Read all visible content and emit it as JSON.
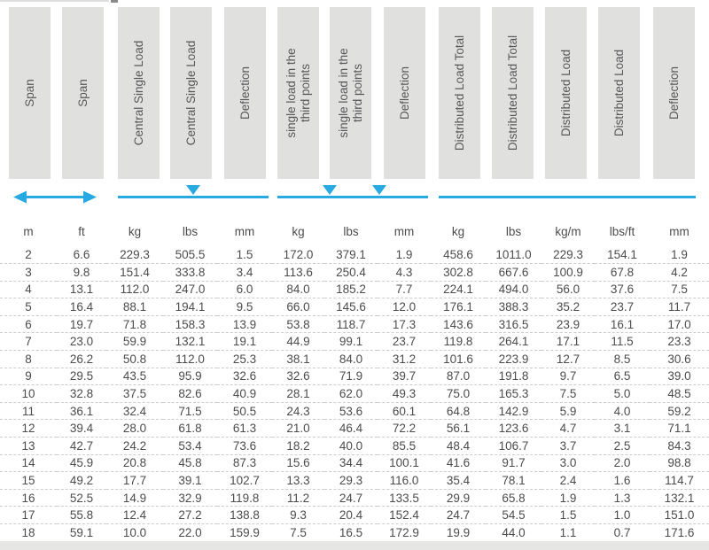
{
  "colors": {
    "accent_blue": "#29a9e2",
    "header_box_bg": "#e0e0de",
    "header_text": "#58585a",
    "data_text": "#4c4c4e",
    "row_divider": "#cccccc",
    "bottom_strip": "#e6e6e4"
  },
  "annotations": {
    "span_arrow": {
      "name": "span-extent-arrow",
      "type": "double-headed-horizontal-arrow"
    },
    "central_load": {
      "name": "central-point-load-symbol",
      "type": "beam-line-with-one-down-triangle"
    },
    "third_point_loads": {
      "name": "third-point-loads-symbol",
      "type": "beam-line-with-two-down-triangles"
    },
    "distributed_load": {
      "name": "distributed-load-symbol",
      "type": "beam-line"
    }
  },
  "table": {
    "columns": [
      {
        "id": "span-m",
        "label": "Span",
        "unit": "m"
      },
      {
        "id": "span-ft",
        "label": "Span",
        "unit": "ft"
      },
      {
        "id": "central-single-load-kg",
        "label": "Central Single Load",
        "unit": "kg"
      },
      {
        "id": "central-single-load-lbs",
        "label": "Central Single Load",
        "unit": "lbs"
      },
      {
        "id": "deflection-central-mm",
        "label": "Deflection",
        "unit": "mm"
      },
      {
        "id": "third-point-load-kg",
        "label": "single load in the\nthird points",
        "unit": "kg"
      },
      {
        "id": "third-point-load-lbs",
        "label": "single load in the\nthird points",
        "unit": "lbs"
      },
      {
        "id": "deflection-third-mm",
        "label": "Deflection",
        "unit": "mm"
      },
      {
        "id": "distributed-load-total-kg",
        "label": "Distributed Load Total",
        "unit": "kg"
      },
      {
        "id": "distributed-load-total-lbs",
        "label": "Distributed Load Total",
        "unit": "lbs"
      },
      {
        "id": "distributed-load-kgm",
        "label": "Distributed Load",
        "unit": "kg/m"
      },
      {
        "id": "distributed-load-lbsft",
        "label": "Distributed Load",
        "unit": "lbs/ft"
      },
      {
        "id": "deflection-distributed-mm",
        "label": "Deflection",
        "unit": "mm"
      }
    ],
    "rows": [
      [
        "2",
        "6.6",
        "229.3",
        "505.5",
        "1.5",
        "172.0",
        "379.1",
        "1.9",
        "458.6",
        "1011.0",
        "229.3",
        "154.1",
        "1.9"
      ],
      [
        "3",
        "9.8",
        "151.4",
        "333.8",
        "3.4",
        "113.6",
        "250.4",
        "4.3",
        "302.8",
        "667.6",
        "100.9",
        "67.8",
        "4.2"
      ],
      [
        "4",
        "13.1",
        "112.0",
        "247.0",
        "6.0",
        "84.0",
        "185.2",
        "7.7",
        "224.1",
        "494.0",
        "56.0",
        "37.6",
        "7.5"
      ],
      [
        "5",
        "16.4",
        "88.1",
        "194.1",
        "9.5",
        "66.0",
        "145.6",
        "12.0",
        "176.1",
        "388.3",
        "35.2",
        "23.7",
        "11.7"
      ],
      [
        "6",
        "19.7",
        "71.8",
        "158.3",
        "13.9",
        "53.8",
        "118.7",
        "17.3",
        "143.6",
        "316.5",
        "23.9",
        "16.1",
        "17.0"
      ],
      [
        "7",
        "23.0",
        "59.9",
        "132.1",
        "19.1",
        "44.9",
        "99.1",
        "23.7",
        "119.8",
        "264.1",
        "17.1",
        "11.5",
        "23.3"
      ],
      [
        "8",
        "26.2",
        "50.8",
        "112.0",
        "25.3",
        "38.1",
        "84.0",
        "31.2",
        "101.6",
        "223.9",
        "12.7",
        "8.5",
        "30.6"
      ],
      [
        "9",
        "29.5",
        "43.5",
        "95.9",
        "32.6",
        "32.6",
        "71.9",
        "39.7",
        "87.0",
        "191.8",
        "9.7",
        "6.5",
        "39.0"
      ],
      [
        "10",
        "32.8",
        "37.5",
        "82.6",
        "40.9",
        "28.1",
        "62.0",
        "49.3",
        "75.0",
        "165.3",
        "7.5",
        "5.0",
        "48.5"
      ],
      [
        "11",
        "36.1",
        "32.4",
        "71.5",
        "50.5",
        "24.3",
        "53.6",
        "60.1",
        "64.8",
        "142.9",
        "5.9",
        "4.0",
        "59.2"
      ],
      [
        "12",
        "39.4",
        "28.0",
        "61.8",
        "61.3",
        "21.0",
        "46.4",
        "72.2",
        "56.1",
        "123.6",
        "4.7",
        "3.1",
        "71.1"
      ],
      [
        "13",
        "42.7",
        "24.2",
        "53.4",
        "73.6",
        "18.2",
        "40.0",
        "85.5",
        "48.4",
        "106.7",
        "3.7",
        "2.5",
        "84.3"
      ],
      [
        "14",
        "45.9",
        "20.8",
        "45.8",
        "87.3",
        "15.6",
        "34.4",
        "100.1",
        "41.6",
        "91.7",
        "3.0",
        "2.0",
        "98.8"
      ],
      [
        "15",
        "49.2",
        "17.7",
        "39.1",
        "102.7",
        "13.3",
        "29.3",
        "116.0",
        "35.4",
        "78.1",
        "2.4",
        "1.6",
        "114.7"
      ],
      [
        "16",
        "52.5",
        "14.9",
        "32.9",
        "119.8",
        "11.2",
        "24.7",
        "133.5",
        "29.9",
        "65.8",
        "1.9",
        "1.3",
        "132.1"
      ],
      [
        "17",
        "55.8",
        "12.4",
        "27.2",
        "138.8",
        "9.3",
        "20.4",
        "152.4",
        "24.7",
        "54.5",
        "1.5",
        "1.0",
        "151.0"
      ],
      [
        "18",
        "59.1",
        "10.0",
        "22.0",
        "159.9",
        "7.5",
        "16.5",
        "172.9",
        "19.9",
        "44.0",
        "1.1",
        "0.7",
        "171.6"
      ]
    ]
  }
}
